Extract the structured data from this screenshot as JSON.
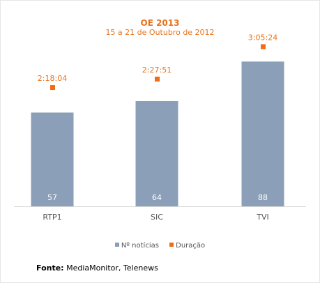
{
  "chart_data": {
    "type": "bar",
    "title": "OE 2013",
    "subtitle": "15 a 21 de Outubro de 2012",
    "categories": [
      "RTP1",
      "SIC",
      "TVI"
    ],
    "series": [
      {
        "name": "Nº notícias",
        "values": [
          57,
          64,
          88
        ],
        "color": "#8ba0b8",
        "kind": "bar"
      },
      {
        "name": "Duração",
        "values": [
          "2:18:04",
          "2:27:51",
          "3:05:24"
        ],
        "color": "#f26c13",
        "kind": "marker"
      }
    ],
    "bar_ylim": [
      0,
      100
    ],
    "duration_ylim_seconds": [
      0,
      12600
    ],
    "legend_position": "bottom",
    "grid": false
  },
  "source": {
    "label": "Fonte:",
    "text": "MediaMonitor, Telenews"
  }
}
